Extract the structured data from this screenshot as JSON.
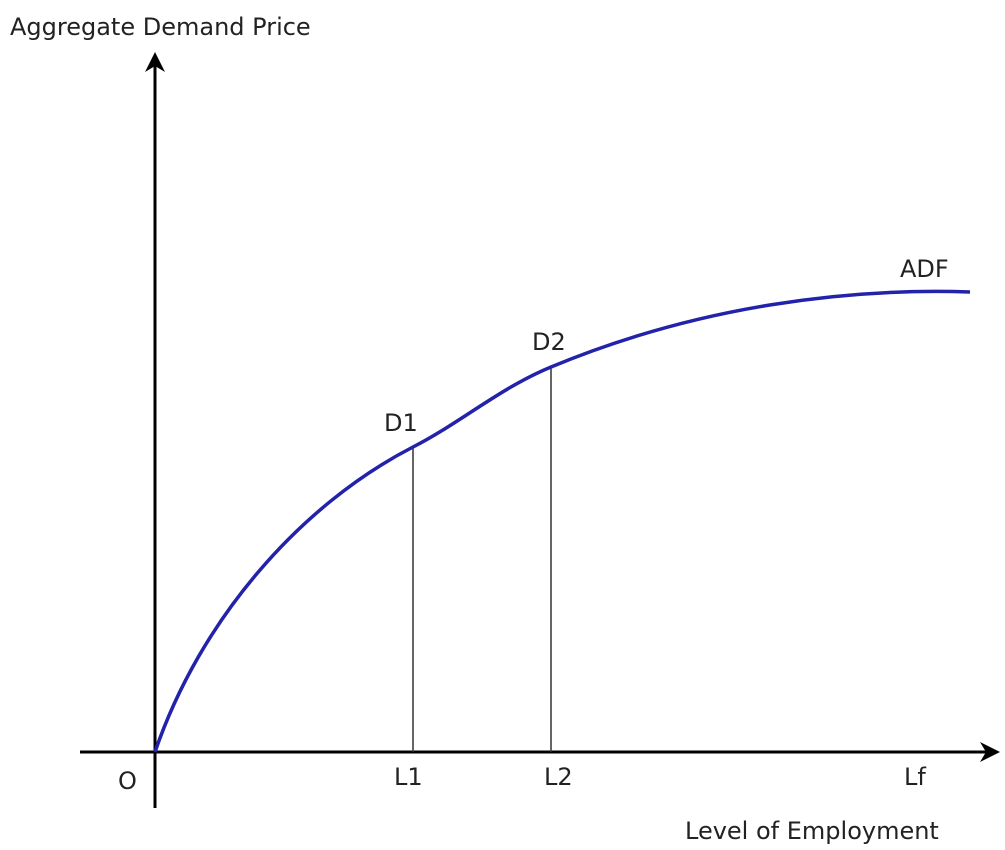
{
  "title": "Aggregate Demand Price",
  "x_axis_label": "Level of Employment",
  "curve_label": "ADF",
  "points": [
    "D1",
    "D2"
  ],
  "x_points": [
    "O",
    "L1",
    "L2",
    "Lf"
  ]
}
